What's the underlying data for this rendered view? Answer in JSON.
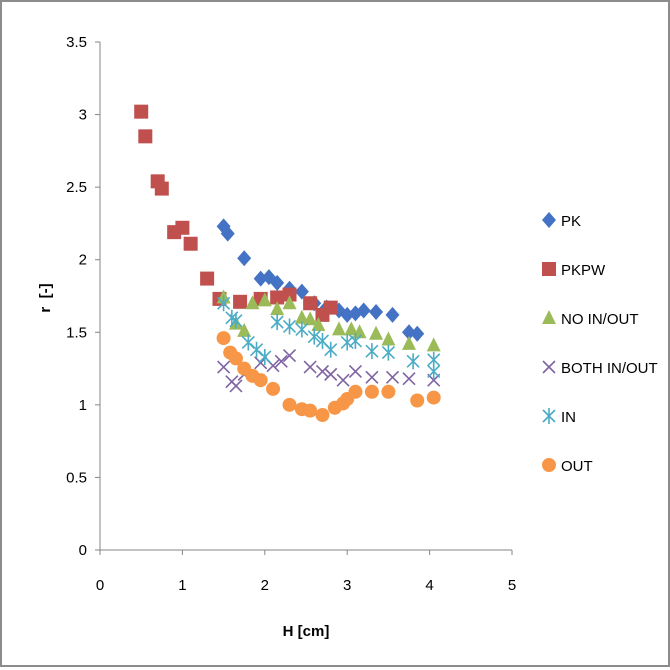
{
  "chart_data": {
    "type": "scatter",
    "title": "",
    "xlabel": "H [cm]",
    "ylabel": "r  [-]",
    "xlim": [
      0,
      5
    ],
    "ylim": [
      0,
      3.5
    ],
    "x_ticks": [
      "0",
      "1",
      "2",
      "3",
      "4",
      "5"
    ],
    "y_ticks": [
      "0",
      "0.5",
      "1",
      "1.5",
      "2",
      "2.5",
      "3",
      "3.5"
    ],
    "grid": false,
    "legend_position": "right",
    "series": [
      {
        "name": "PK",
        "marker": "diamond",
        "color": "#4472c4",
        "points": [
          [
            1.5,
            2.23
          ],
          [
            1.55,
            2.18
          ],
          [
            1.75,
            2.01
          ],
          [
            1.95,
            1.87
          ],
          [
            2.05,
            1.88
          ],
          [
            2.15,
            1.84
          ],
          [
            2.3,
            1.8
          ],
          [
            2.45,
            1.78
          ],
          [
            2.6,
            1.7
          ],
          [
            2.75,
            1.67
          ],
          [
            2.9,
            1.65
          ],
          [
            3.0,
            1.62
          ],
          [
            3.1,
            1.63
          ],
          [
            3.2,
            1.65
          ],
          [
            3.35,
            1.64
          ],
          [
            3.55,
            1.62
          ],
          [
            3.75,
            1.5
          ],
          [
            3.85,
            1.49
          ]
        ]
      },
      {
        "name": "PKPW",
        "marker": "square",
        "color": "#c0504d",
        "points": [
          [
            0.5,
            3.02
          ],
          [
            0.55,
            2.85
          ],
          [
            0.7,
            2.54
          ],
          [
            0.75,
            2.49
          ],
          [
            0.9,
            2.19
          ],
          [
            1.0,
            2.22
          ],
          [
            1.1,
            2.11
          ],
          [
            1.3,
            1.87
          ],
          [
            1.45,
            1.73
          ],
          [
            1.7,
            1.71
          ],
          [
            1.95,
            1.73
          ],
          [
            2.15,
            1.74
          ],
          [
            2.3,
            1.76
          ],
          [
            2.55,
            1.7
          ],
          [
            2.7,
            1.62
          ],
          [
            2.8,
            1.67
          ]
        ]
      },
      {
        "name": "NO IN/OUT",
        "marker": "triangle",
        "color": "#9bbb59",
        "points": [
          [
            1.5,
            1.74
          ],
          [
            1.65,
            1.56
          ],
          [
            1.75,
            1.51
          ],
          [
            1.85,
            1.7
          ],
          [
            2.0,
            1.72
          ],
          [
            2.15,
            1.66
          ],
          [
            2.3,
            1.7
          ],
          [
            2.45,
            1.6
          ],
          [
            2.55,
            1.59
          ],
          [
            2.65,
            1.55
          ],
          [
            2.9,
            1.52
          ],
          [
            3.05,
            1.52
          ],
          [
            3.15,
            1.5
          ],
          [
            3.35,
            1.49
          ],
          [
            3.5,
            1.45
          ],
          [
            3.75,
            1.42
          ],
          [
            4.05,
            1.41
          ]
        ]
      },
      {
        "name": "BOTH IN/OUT",
        "marker": "x",
        "color": "#8064a2",
        "points": [
          [
            1.5,
            1.26
          ],
          [
            1.6,
            1.16
          ],
          [
            1.65,
            1.13
          ],
          [
            1.75,
            1.21
          ],
          [
            1.95,
            1.29
          ],
          [
            2.1,
            1.27
          ],
          [
            2.2,
            1.3
          ],
          [
            2.3,
            1.34
          ],
          [
            2.55,
            1.26
          ],
          [
            2.7,
            1.23
          ],
          [
            2.8,
            1.21
          ],
          [
            2.95,
            1.17
          ],
          [
            3.1,
            1.23
          ],
          [
            3.3,
            1.19
          ],
          [
            3.55,
            1.19
          ],
          [
            3.75,
            1.18
          ],
          [
            4.05,
            1.17
          ]
        ]
      },
      {
        "name": "IN",
        "marker": "star",
        "color": "#4bacc6",
        "points": [
          [
            1.5,
            1.7
          ],
          [
            1.6,
            1.6
          ],
          [
            1.65,
            1.58
          ],
          [
            1.8,
            1.43
          ],
          [
            1.9,
            1.38
          ],
          [
            2.0,
            1.33
          ],
          [
            2.15,
            1.57
          ],
          [
            2.3,
            1.54
          ],
          [
            2.45,
            1.52
          ],
          [
            2.6,
            1.47
          ],
          [
            2.7,
            1.44
          ],
          [
            2.8,
            1.38
          ],
          [
            3.0,
            1.43
          ],
          [
            3.1,
            1.44
          ],
          [
            3.3,
            1.37
          ],
          [
            3.5,
            1.36
          ],
          [
            3.8,
            1.3
          ],
          [
            4.05,
            1.31
          ],
          [
            4.05,
            1.23
          ]
        ]
      },
      {
        "name": "OUT",
        "marker": "circle",
        "color": "#f79646",
        "points": [
          [
            1.5,
            1.46
          ],
          [
            1.58,
            1.36
          ],
          [
            1.65,
            1.32
          ],
          [
            1.75,
            1.25
          ],
          [
            1.85,
            1.2
          ],
          [
            1.95,
            1.17
          ],
          [
            2.1,
            1.11
          ],
          [
            2.3,
            1.0
          ],
          [
            2.45,
            0.97
          ],
          [
            2.55,
            0.96
          ],
          [
            2.7,
            0.93
          ],
          [
            2.85,
            0.98
          ],
          [
            2.95,
            1.01
          ],
          [
            3.0,
            1.04
          ],
          [
            3.1,
            1.09
          ],
          [
            3.3,
            1.09
          ],
          [
            3.5,
            1.09
          ],
          [
            3.85,
            1.03
          ],
          [
            4.05,
            1.05
          ]
        ]
      }
    ]
  }
}
